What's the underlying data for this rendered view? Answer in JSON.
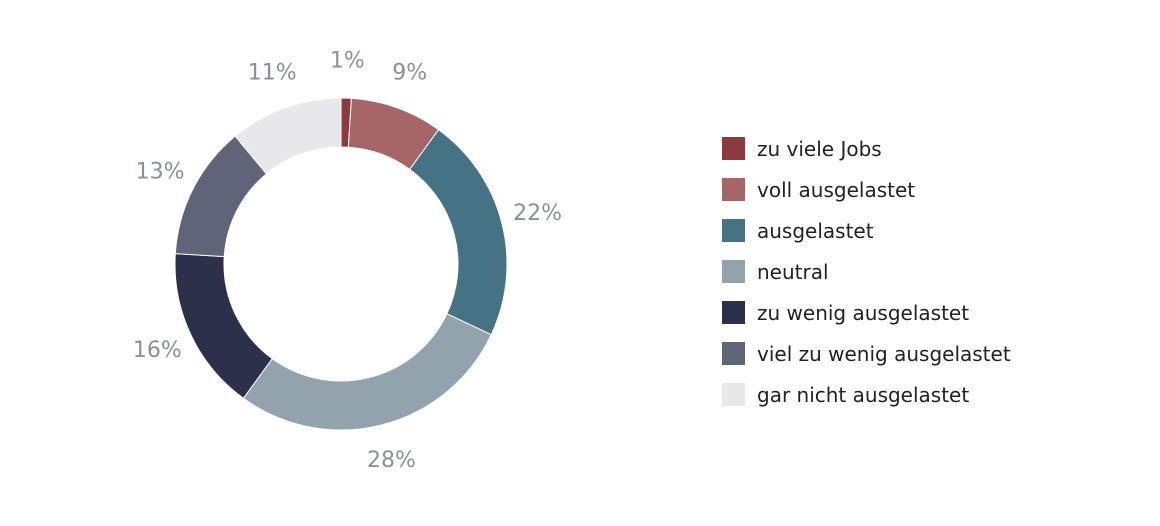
{
  "chart_data": {
    "type": "pie",
    "variant": "donut",
    "categories": [
      "zu viele Jobs",
      "voll ausgelastet",
      "ausgelastet",
      "neutral",
      "zu wenig ausgelastet",
      "viel zu wenig ausgelastet",
      "gar nicht ausgelastet"
    ],
    "values": [
      1,
      9,
      22,
      28,
      16,
      13,
      11
    ],
    "value_labels": [
      "1%",
      "9%",
      "22%",
      "28%",
      "16%",
      "13%",
      "11%"
    ],
    "colors": [
      "#8a3b3b",
      "#a66567",
      "#457385",
      "#92a3ae",
      "#2c304a",
      "#5f6478",
      "#e8e8ea"
    ],
    "label_color": "#8a8f9e",
    "legend_position": "right"
  }
}
